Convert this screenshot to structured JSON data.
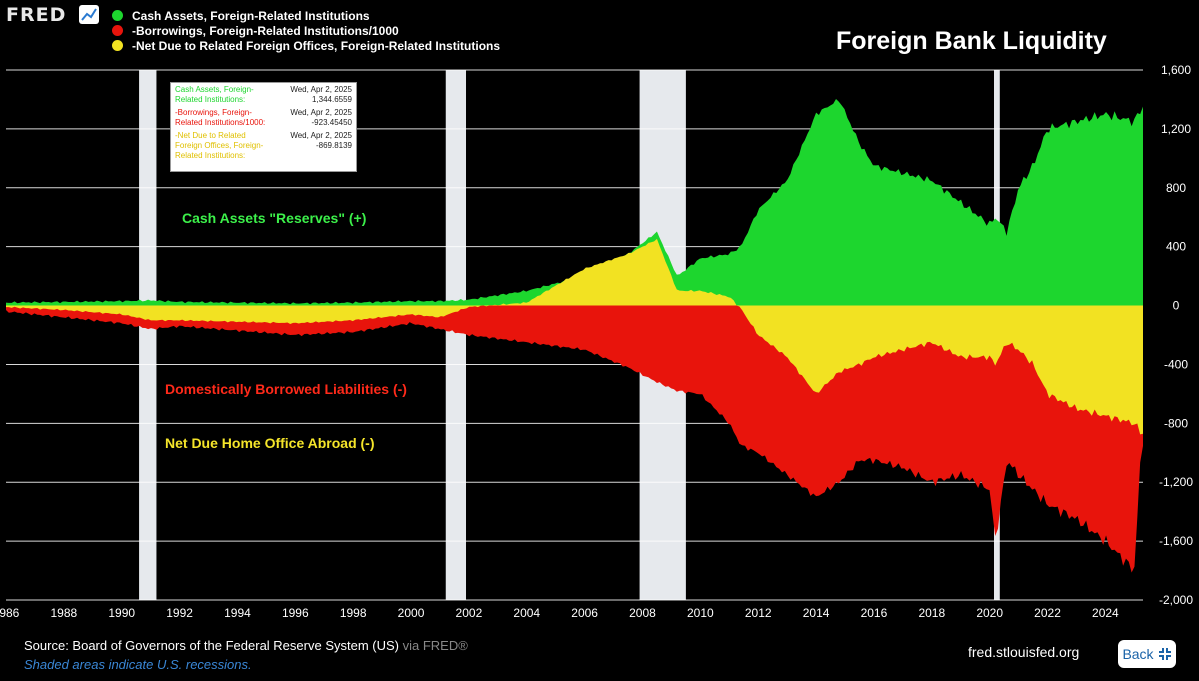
{
  "app": {
    "logo_text": "FRED",
    "website": "fred.stlouisfed.org"
  },
  "chart_data": {
    "type": "area",
    "title": "Foreign Bank Liquidity",
    "xlabel": "",
    "ylabel": "",
    "xlim": [
      1986,
      2025.3
    ],
    "ylim": [
      -2000,
      1600
    ],
    "x_ticks": [
      "1986",
      "1988",
      "1990",
      "1992",
      "1994",
      "1996",
      "1998",
      "2000",
      "2002",
      "2004",
      "2006",
      "2008",
      "2010",
      "2012",
      "2014",
      "2016",
      "2018",
      "2020",
      "2022",
      "2024"
    ],
    "y_ticks": [
      "1,600",
      "1,200",
      "800",
      "400",
      "0",
      "-400",
      "-800",
      "-1,200",
      "-1,600",
      "-2,000"
    ],
    "y_tick_values": [
      1600,
      1200,
      800,
      400,
      0,
      -400,
      -800,
      -1200,
      -1600,
      -2000
    ],
    "recessions": [
      [
        1990.6,
        1991.2
      ],
      [
        2001.2,
        2001.9
      ],
      [
        2007.9,
        2009.5
      ],
      [
        2020.15,
        2020.35
      ]
    ],
    "x": [
      1986,
      1988,
      1990,
      1991,
      1992,
      1994,
      1996,
      1998,
      2000,
      2001,
      2002,
      2004,
      2006,
      2007.5,
      2008.5,
      2009.2,
      2010,
      2011,
      2011.4,
      2012,
      2013,
      2014,
      2014.8,
      2015.5,
      2016,
      2017,
      2018,
      2019,
      2020,
      2020.2,
      2020.6,
      2021,
      2021.5,
      2022,
      2023,
      2024,
      2025,
      2025.25
    ],
    "series": [
      {
        "name": "Cash Assets, Foreign-Related Institutions",
        "color": "#1dd62e",
        "values": [
          20,
          25,
          30,
          35,
          25,
          20,
          15,
          20,
          30,
          30,
          40,
          100,
          200,
          350,
          500,
          200,
          320,
          350,
          400,
          650,
          850,
          1300,
          1400,
          1100,
          950,
          900,
          850,
          700,
          550,
          600,
          500,
          800,
          950,
          1200,
          1250,
          1300,
          1250,
          1344.6559
        ]
      },
      {
        "name": "-Borrowings, Foreign-Related Institutions/1000",
        "color": "#e8140c",
        "values": [
          -40,
          -80,
          -120,
          -160,
          -140,
          -170,
          -200,
          -180,
          -120,
          -160,
          -200,
          -250,
          -300,
          -420,
          -520,
          -580,
          -600,
          -800,
          -950,
          -1000,
          -1150,
          -1300,
          -1200,
          -1050,
          -1050,
          -1100,
          -1200,
          -1150,
          -1250,
          -1600,
          -1050,
          -1150,
          -1250,
          -1350,
          -1450,
          -1600,
          -1800,
          -923.4545
        ]
      },
      {
        "name": "-Net Due to Related Foreign Offices, Foreign-Related Institutions",
        "color": "#f2e222",
        "values": [
          -10,
          -30,
          -60,
          -100,
          -100,
          -110,
          -120,
          -100,
          -60,
          -80,
          -10,
          20,
          250,
          350,
          450,
          100,
          100,
          60,
          -20,
          -200,
          -350,
          -600,
          -450,
          -400,
          -350,
          -300,
          -250,
          -350,
          -350,
          -400,
          -250,
          -300,
          -400,
          -600,
          -700,
          -750,
          -800,
          -869.8139
        ]
      }
    ]
  },
  "legend": {
    "items": [
      {
        "label": "Cash Assets, Foreign-Related Institutions",
        "color": "#1dd62e"
      },
      {
        "label": "-Borrowings, Foreign-Related Institutions/1000",
        "color": "#e8140c"
      },
      {
        "label": "-Net Due to Related Foreign Offices, Foreign-Related Institutions",
        "color": "#f2e222"
      }
    ]
  },
  "tooltip": {
    "rows": [
      {
        "name": "Cash Assets, Foreign-Related Institutions:",
        "value": "Wed, Apr 2, 2025 1,344.6559",
        "color": "#1dd62e"
      },
      {
        "name": "-Borrowings, Foreign-Related Institutions/1000:",
        "value": "Wed, Apr 2, 2025 -923.45450",
        "color": "#e8140c"
      },
      {
        "name": "-Net Due to Related Foreign Offices, Foreign-Related Institutions:",
        "value": "Wed, Apr 2, 2025 -869.8139",
        "color": "#e0c000"
      }
    ]
  },
  "annotations": {
    "cash": "Cash Assets \"Reserves\" (+)",
    "borrowed": "Domestically Borrowed Liabilities (-)",
    "netdue": "Net Due Home Office Abroad (-)"
  },
  "footer": {
    "source_label": "Source: Board of Governors of the Federal Reserve System (US)",
    "via": "via FRED®",
    "recession_note": "Shaded areas indicate U.S. recessions.",
    "back_label": "Back"
  },
  "colors": {
    "green": "#1dd62e",
    "red": "#e8140c",
    "yellow": "#f2e222",
    "recession": "#e6e9ed",
    "grid": "#ffffff"
  }
}
